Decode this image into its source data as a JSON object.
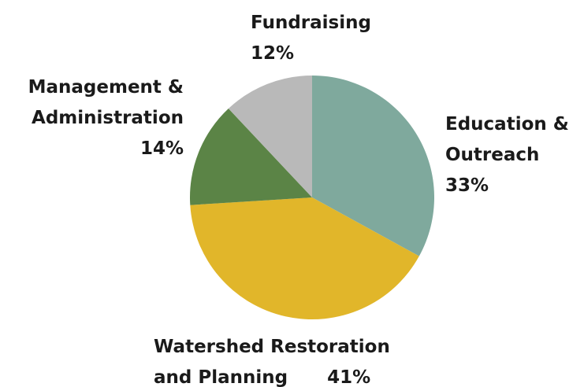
{
  "chart_data": {
    "type": "pie",
    "categories": [
      "Education & Outreach",
      "Watershed Restoration and Planning",
      "Management & Administration",
      "Fundraising"
    ],
    "values": [
      33,
      41,
      14,
      12
    ],
    "value_labels": [
      "33%",
      "41%",
      "14%",
      "12%"
    ],
    "colors": [
      "#7fa99d",
      "#e1b62a",
      "#5b8446",
      "#b9b9b9"
    ]
  }
}
